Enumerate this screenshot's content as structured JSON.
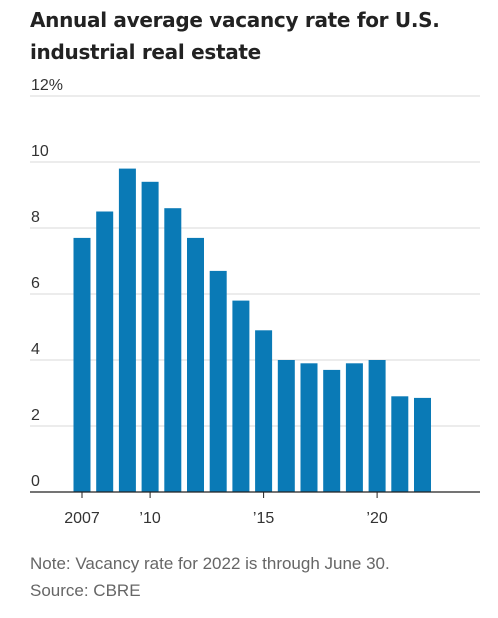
{
  "chart_data": {
    "type": "bar",
    "title": "Annual average vacancy rate for U.S. industrial real estate",
    "categories": [
      "2007",
      "2008",
      "2009",
      "2010",
      "2011",
      "2012",
      "2013",
      "2014",
      "2015",
      "2016",
      "2017",
      "2018",
      "2019",
      "2020",
      "2021",
      "2022"
    ],
    "values": [
      7.7,
      8.5,
      9.8,
      9.4,
      8.6,
      7.7,
      6.7,
      5.8,
      4.9,
      4.0,
      3.9,
      3.7,
      3.9,
      4.0,
      2.9,
      2.85
    ],
    "ylim": [
      0,
      12
    ],
    "y_ticks": [
      {
        "value": 0,
        "label": "0"
      },
      {
        "value": 2,
        "label": "2"
      },
      {
        "value": 4,
        "label": "4"
      },
      {
        "value": 6,
        "label": "6"
      },
      {
        "value": 8,
        "label": "8"
      },
      {
        "value": 10,
        "label": "10"
      },
      {
        "value": 12,
        "label": "12%"
      }
    ],
    "x_ticks": [
      {
        "index": 0,
        "label": "2007"
      },
      {
        "index": 3,
        "label": "’10"
      },
      {
        "index": 8,
        "label": "’15"
      },
      {
        "index": 13,
        "label": "’20"
      }
    ],
    "grid": true,
    "bar_color": "#0a7ab6",
    "xlabel": "",
    "ylabel": ""
  },
  "notes": {
    "note": "Note: Vacancy rate for 2022 is through June 30.",
    "source": "Source: CBRE"
  }
}
